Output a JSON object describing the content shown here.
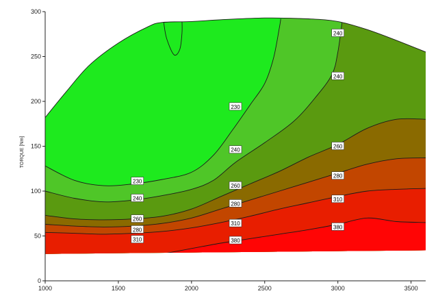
{
  "chart_data": {
    "type": "contour",
    "title": "",
    "xlabel": "",
    "ylabel": "TORQUE [Nm]",
    "xlim": [
      1000,
      3600
    ],
    "ylim": [
      0,
      300
    ],
    "x_ticks": [
      1000,
      1500,
      2000,
      2500,
      3000,
      3500
    ],
    "y_ticks": [
      0,
      50,
      100,
      150,
      200,
      250,
      300
    ],
    "grid": false,
    "colorscale": [
      "#10ee10",
      "#ff0000"
    ],
    "envelope": {
      "upper": [
        [
          1000,
          182
        ],
        [
          1150,
          212
        ],
        [
          1300,
          240
        ],
        [
          1500,
          265
        ],
        [
          1700,
          283
        ],
        [
          1800,
          288
        ],
        [
          2000,
          289
        ],
        [
          2200,
          291
        ],
        [
          2500,
          293
        ],
        [
          2800,
          292
        ],
        [
          3000,
          289
        ],
        [
          3200,
          280
        ],
        [
          3400,
          268
        ],
        [
          3600,
          255
        ]
      ],
      "lower": [
        [
          1000,
          30
        ],
        [
          1500,
          30
        ],
        [
          2000,
          30
        ],
        [
          2500,
          32
        ],
        [
          3000,
          33
        ],
        [
          3600,
          34
        ]
      ]
    },
    "contours": [
      {
        "level": 230,
        "label_text": "230",
        "points": [
          [
            1000,
            128
          ],
          [
            1200,
            112
          ],
          [
            1400,
            106
          ],
          [
            1600,
            108
          ],
          [
            1800,
            113
          ],
          [
            2000,
            121
          ],
          [
            2150,
            140
          ],
          [
            2280,
            168
          ],
          [
            2400,
            196
          ],
          [
            2500,
            220
          ],
          [
            2560,
            248
          ],
          [
            2600,
            282
          ],
          [
            2610,
            292
          ]
        ]
      },
      {
        "level": 240,
        "label_text": "240",
        "points": [
          [
            1000,
            100
          ],
          [
            1200,
            92
          ],
          [
            1400,
            88
          ],
          [
            1600,
            90
          ],
          [
            1800,
            95
          ],
          [
            2000,
            102
          ],
          [
            2150,
            112
          ],
          [
            2300,
            132
          ],
          [
            2500,
            154
          ],
          [
            2700,
            178
          ],
          [
            2850,
            205
          ],
          [
            2960,
            230
          ],
          [
            3000,
            255
          ],
          [
            3030,
            290
          ]
        ]
      },
      {
        "level": 260,
        "label_text": "260",
        "points": [
          [
            1000,
            73
          ],
          [
            1200,
            69
          ],
          [
            1400,
            68
          ],
          [
            1600,
            69
          ],
          [
            1800,
            72
          ],
          [
            2000,
            80
          ],
          [
            2200,
            94
          ],
          [
            2400,
            108
          ],
          [
            2600,
            122
          ],
          [
            2800,
            138
          ],
          [
            3000,
            152
          ],
          [
            3200,
            170
          ],
          [
            3400,
            180
          ],
          [
            3600,
            180
          ]
        ]
      },
      {
        "level": 280,
        "label_text": "280",
        "points": [
          [
            1000,
            63
          ],
          [
            1200,
            61
          ],
          [
            1400,
            60
          ],
          [
            1600,
            61
          ],
          [
            1800,
            64
          ],
          [
            2000,
            70
          ],
          [
            2200,
            80
          ],
          [
            2400,
            90
          ],
          [
            2600,
            100
          ],
          [
            2800,
            110
          ],
          [
            3000,
            120
          ],
          [
            3200,
            130
          ],
          [
            3400,
            136
          ],
          [
            3600,
            137
          ]
        ]
      },
      {
        "level": 310,
        "label_text": "310",
        "points": [
          [
            1000,
            54
          ],
          [
            1200,
            53
          ],
          [
            1400,
            52
          ],
          [
            1600,
            53
          ],
          [
            1800,
            55
          ],
          [
            2000,
            59
          ],
          [
            2200,
            65
          ],
          [
            2400,
            72
          ],
          [
            2600,
            80
          ],
          [
            2800,
            87
          ],
          [
            3000,
            94
          ],
          [
            3200,
            100
          ],
          [
            3400,
            102
          ],
          [
            3600,
            103
          ]
        ]
      },
      {
        "level": 380,
        "label_text": "380",
        "points": [
          [
            1800,
            30
          ],
          [
            2000,
            36
          ],
          [
            2200,
            42
          ],
          [
            2400,
            47
          ],
          [
            2600,
            52
          ],
          [
            2800,
            57
          ],
          [
            3000,
            63
          ],
          [
            3200,
            70
          ],
          [
            3400,
            66
          ],
          [
            3600,
            65
          ]
        ]
      }
    ],
    "contour_labels": [
      {
        "text": "240",
        "x": 3000,
        "y": 276
      },
      {
        "text": "240",
        "x": 3000,
        "y": 228
      },
      {
        "text": "230",
        "x": 2300,
        "y": 194
      },
      {
        "text": "240",
        "x": 2300,
        "y": 146
      },
      {
        "text": "260",
        "x": 3000,
        "y": 150
      },
      {
        "text": "260",
        "x": 2300,
        "y": 106
      },
      {
        "text": "280",
        "x": 3000,
        "y": 117
      },
      {
        "text": "280",
        "x": 2300,
        "y": 86
      },
      {
        "text": "310",
        "x": 3000,
        "y": 91
      },
      {
        "text": "310",
        "x": 2300,
        "y": 64
      },
      {
        "text": "380",
        "x": 3000,
        "y": 60
      },
      {
        "text": "380",
        "x": 2300,
        "y": 45
      },
      {
        "text": "230",
        "x": 1630,
        "y": 111
      },
      {
        "text": "240",
        "x": 1630,
        "y": 92
      },
      {
        "text": "260",
        "x": 1630,
        "y": 69
      },
      {
        "text": "280",
        "x": 1630,
        "y": 57
      },
      {
        "text": "310",
        "x": 1630,
        "y": 46
      }
    ],
    "bands": [
      {
        "from": "upper",
        "to": 230,
        "color": "#1eea1e"
      },
      {
        "from": 230,
        "to": 240,
        "color": "#4fc628"
      },
      {
        "from": 240,
        "to": 260,
        "color": "#5a9a10"
      },
      {
        "from": 260,
        "to": 280,
        "color": "#8a6a00"
      },
      {
        "from": 280,
        "to": 310,
        "color": "#c24600"
      },
      {
        "from": 310,
        "to": 380,
        "color": "#e81e00"
      },
      {
        "from": 380,
        "to": "lower",
        "color": "#ff0505"
      }
    ]
  }
}
